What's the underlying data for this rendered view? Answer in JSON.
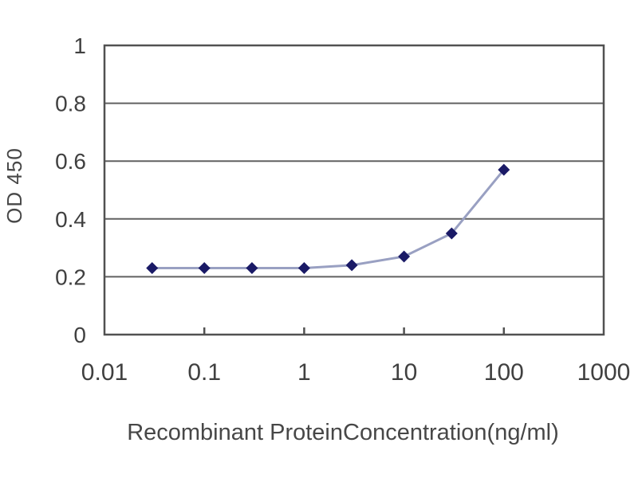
{
  "chart_data": {
    "type": "line",
    "title": "",
    "xlabel": "Recombinant ProteinConcentration(ng/ml)",
    "ylabel": "OD 450",
    "x_scale": "log",
    "xlim": [
      0.01,
      1000
    ],
    "ylim": [
      0,
      1
    ],
    "x_ticks": [
      0.01,
      0.1,
      1,
      10,
      100,
      1000
    ],
    "x_tick_labels": [
      "0.01",
      "0.1",
      "1",
      "10",
      "100",
      "1000"
    ],
    "y_ticks": [
      0,
      0.2,
      0.4,
      0.6,
      0.8,
      1
    ],
    "y_tick_labels": [
      "0",
      "0.2",
      "0.4",
      "0.6",
      "0.8",
      "1"
    ],
    "grid": "horizontal-only",
    "legend": "none",
    "series": [
      {
        "name": "OD 450",
        "marker": "diamond",
        "x": [
          0.03,
          0.1,
          0.3,
          1,
          3,
          10,
          30,
          100
        ],
        "y": [
          0.23,
          0.23,
          0.23,
          0.23,
          0.24,
          0.27,
          0.35,
          0.57
        ]
      }
    ],
    "colors": {
      "marker": "#1a1a66",
      "line": "#99a0c2",
      "grid": "#616161",
      "border": "#515151",
      "text": "#404040",
      "background": "#ffffff"
    }
  }
}
